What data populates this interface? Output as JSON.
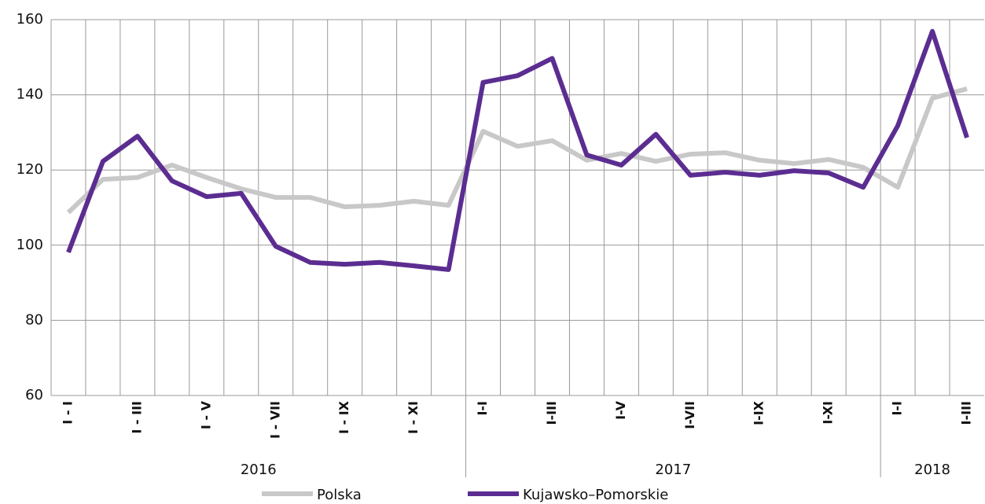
{
  "chart_data": {
    "type": "line",
    "categories": [
      "I - I",
      null,
      "I - III",
      null,
      "I - V",
      null,
      "I - VII",
      null,
      "I - IX",
      null,
      "I - XI",
      null,
      "I-I",
      null,
      "I-III",
      null,
      "I-V",
      null,
      "I-VII",
      null,
      "I-IX",
      null,
      "I-XI",
      null,
      "I-I",
      null,
      "I-III"
    ],
    "year_groups": [
      {
        "label": "2016",
        "span": 12
      },
      {
        "label": "2017",
        "span": 12
      },
      {
        "label": "2018",
        "span": 3
      }
    ],
    "series": [
      {
        "name": "Polska",
        "color": "#c8c8c8",
        "values": [
          108.7,
          117.5,
          118,
          121.3,
          118,
          115,
          112.7,
          112.7,
          110.2,
          110.6,
          111.7,
          110.6,
          130.3,
          126.3,
          127.8,
          122.6,
          124.4,
          122.3,
          124.2,
          124.6,
          122.6,
          121.7,
          122.8,
          120.7,
          115.4,
          139.1,
          141.6
        ]
      },
      {
        "name": "Kujawsko–Pomorskie",
        "color": "#5b2d91",
        "values": [
          98.1,
          122.3,
          129,
          117.1,
          112.9,
          113.8,
          99.7,
          95.4,
          94.9,
          95.4,
          94.5,
          93.5,
          143.3,
          145.1,
          149.7,
          124,
          121.3,
          129.5,
          118.6,
          119.4,
          118.6,
          119.8,
          119.2,
          115.4,
          131.8,
          156.9,
          128.6
        ]
      }
    ],
    "ylim": [
      60,
      160
    ],
    "yticks": [
      60,
      80,
      100,
      120,
      140,
      160
    ],
    "grid": true
  }
}
